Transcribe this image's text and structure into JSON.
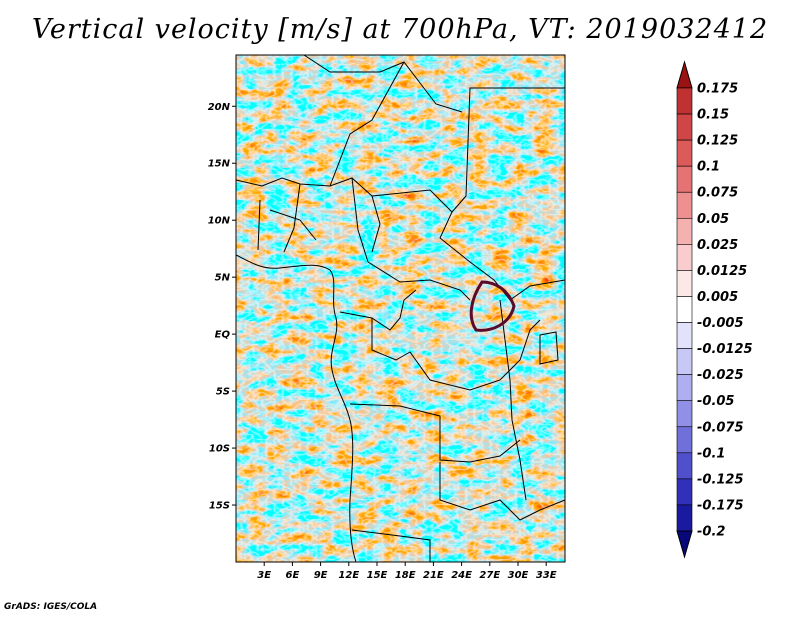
{
  "title": "Vertical velocity [m/s] at 700hPa, VT: 2019032412",
  "footer": "GrADS: IGES/COLA",
  "map": {
    "lat_labels": [
      "20N",
      "15N",
      "10N",
      "5N",
      "EQ",
      "5S",
      "10S",
      "15S"
    ],
    "lat_values": [
      20,
      15,
      10,
      5,
      0,
      -5,
      -10,
      -15
    ],
    "lon_labels": [
      "3E",
      "6E",
      "9E",
      "12E",
      "15E",
      "18E",
      "21E",
      "24E",
      "27E",
      "30E",
      "33E"
    ],
    "lon_values": [
      3,
      6,
      9,
      12,
      15,
      18,
      21,
      24,
      27,
      30,
      33
    ],
    "lat_range": [
      -20,
      24.5
    ],
    "lon_range": [
      0,
      35
    ]
  },
  "colorbar": {
    "labels": [
      "0.175",
      "0.15",
      "0.125",
      "0.1",
      "0.075",
      "0.05",
      "0.025",
      "0.0125",
      "0.005",
      "-0.005",
      "-0.0125",
      "-0.025",
      "-0.05",
      "-0.075",
      "-0.1",
      "-0.125",
      "-0.175",
      "-0.2"
    ],
    "colors": [
      "#b11f1f",
      "#c03232",
      "#cf4646",
      "#dc5a5a",
      "#e57373",
      "#ee9090",
      "#f5b0b0",
      "#f9cdcd",
      "#fde8e8",
      "#ffffff",
      "#e2e2fb",
      "#c8c8f6",
      "#aeaef0",
      "#9090e6",
      "#7070da",
      "#5050cc",
      "#3030bb",
      "#1a1aa0",
      "#0c0c8a"
    ],
    "top_color": "#9a1212",
    "bottom_color": "#08087a"
  }
}
